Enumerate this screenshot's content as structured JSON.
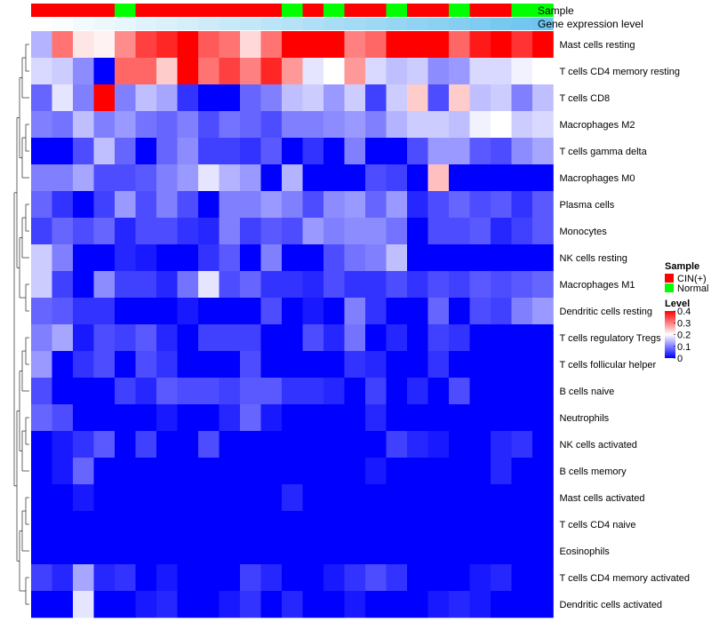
{
  "chart_data": {
    "type": "heatmap",
    "annotations": {
      "sample": {
        "name": "Sample",
        "values": [
          "CIN(+)",
          "CIN(+)",
          "CIN(+)",
          "CIN(+)",
          "Normal",
          "CIN(+)",
          "CIN(+)",
          "CIN(+)",
          "CIN(+)",
          "CIN(+)",
          "CIN(+)",
          "CIN(+)",
          "Normal",
          "CIN(+)",
          "Normal",
          "CIN(+)",
          "CIN(+)",
          "Normal",
          "CIN(+)",
          "CIN(+)",
          "Normal",
          "CIN(+)",
          "CIN(+)",
          "Normal",
          "Normal"
        ]
      },
      "expression": {
        "name": "Gene expression level",
        "values": [
          0.0,
          0.04,
          0.08,
          0.12,
          0.16,
          0.2,
          0.24,
          0.28,
          0.32,
          0.36,
          0.4,
          0.44,
          0.48,
          0.52,
          0.56,
          0.6,
          0.64,
          0.68,
          0.72,
          0.76,
          0.8,
          0.84,
          0.88,
          0.92,
          0.96
        ],
        "low_color": "#ffffff",
        "high_color": "#66c2ee"
      }
    },
    "rows": [
      "Mast cells resting",
      "T cells CD4 memory resting",
      "T cells CD8",
      "Macrophages M2",
      "T cells gamma delta",
      "Macrophages M0",
      "Plasma cells",
      "Monocytes",
      "NK cells resting",
      "Macrophages M1",
      "Dendritic cells resting",
      "T cells regulatory  Tregs",
      "T cells follicular helper",
      "B cells naive",
      "Neutrophils",
      "NK cells activated",
      "B cells memory",
      "Mast cells activated",
      "T cells CD4 naive",
      "Eosinophils",
      "T cells CD4 memory activated",
      "Dendritic cells activated"
    ],
    "values": [
      [
        0.14,
        0.31,
        0.22,
        0.21,
        0.29,
        0.35,
        0.37,
        0.42,
        0.33,
        0.31,
        0.23,
        0.31,
        0.4,
        0.4,
        0.4,
        0.3,
        0.32,
        0.4,
        0.4,
        0.4,
        0.32,
        0.38,
        0.4,
        0.36,
        0.41
      ],
      [
        0.17,
        0.16,
        0.11,
        0.0,
        0.32,
        0.32,
        0.24,
        0.4,
        0.31,
        0.35,
        0.3,
        0.37,
        0.28,
        0.18,
        0.2,
        0.28,
        0.17,
        0.15,
        0.16,
        0.11,
        0.12,
        0.17,
        0.17,
        0.19,
        0.2
      ],
      [
        0.08,
        0.18,
        0.1,
        0.42,
        0.1,
        0.15,
        0.13,
        0.04,
        0.0,
        0.0,
        0.08,
        0.1,
        0.15,
        0.16,
        0.12,
        0.16,
        0.05,
        0.16,
        0.24,
        0.06,
        0.24,
        0.15,
        0.16,
        0.1,
        0.15
      ],
      [
        0.1,
        0.09,
        0.15,
        0.1,
        0.12,
        0.09,
        0.08,
        0.1,
        0.06,
        0.09,
        0.08,
        0.06,
        0.1,
        0.1,
        0.11,
        0.12,
        0.1,
        0.14,
        0.16,
        0.16,
        0.15,
        0.19,
        0.2,
        0.16,
        0.17
      ],
      [
        0.0,
        0.0,
        0.06,
        0.15,
        0.08,
        0.0,
        0.08,
        0.11,
        0.05,
        0.05,
        0.04,
        0.07,
        0.0,
        0.04,
        0.0,
        0.1,
        0.0,
        0.0,
        0.06,
        0.12,
        0.12,
        0.07,
        0.06,
        0.11,
        0.13
      ],
      [
        0.1,
        0.1,
        0.13,
        0.06,
        0.06,
        0.07,
        0.1,
        0.12,
        0.18,
        0.14,
        0.12,
        0.0,
        0.14,
        0.0,
        0.0,
        0.0,
        0.06,
        0.05,
        0.0,
        0.25,
        0.0,
        0.0,
        0.0,
        0.0,
        0.0
      ],
      [
        0.08,
        0.04,
        0.0,
        0.05,
        0.12,
        0.06,
        0.1,
        0.06,
        0.0,
        0.1,
        0.1,
        0.12,
        0.1,
        0.06,
        0.11,
        0.12,
        0.08,
        0.12,
        0.03,
        0.06,
        0.08,
        0.06,
        0.07,
        0.04,
        0.07
      ],
      [
        0.05,
        0.08,
        0.06,
        0.08,
        0.03,
        0.06,
        0.06,
        0.04,
        0.03,
        0.1,
        0.05,
        0.07,
        0.06,
        0.12,
        0.1,
        0.11,
        0.11,
        0.09,
        0.0,
        0.06,
        0.06,
        0.07,
        0.03,
        0.05,
        0.07
      ],
      [
        0.16,
        0.1,
        0.0,
        0.0,
        0.03,
        0.02,
        0.0,
        0.0,
        0.04,
        0.07,
        0.0,
        0.1,
        0.0,
        0.0,
        0.06,
        0.09,
        0.1,
        0.15,
        0.0,
        0.0,
        0.0,
        0.0,
        0.0,
        0.0,
        0.0
      ],
      [
        0.16,
        0.05,
        0.0,
        0.11,
        0.05,
        0.05,
        0.03,
        0.09,
        0.18,
        0.06,
        0.08,
        0.04,
        0.04,
        0.03,
        0.06,
        0.04,
        0.04,
        0.06,
        0.04,
        0.06,
        0.05,
        0.07,
        0.06,
        0.07,
        0.08
      ],
      [
        0.08,
        0.07,
        0.04,
        0.04,
        0.0,
        0.0,
        0.0,
        0.02,
        0.0,
        0.0,
        0.0,
        0.06,
        0.0,
        0.02,
        0.0,
        0.1,
        0.04,
        0.0,
        0.0,
        0.08,
        0.0,
        0.06,
        0.05,
        0.1,
        0.12
      ],
      [
        0.1,
        0.13,
        0.02,
        0.06,
        0.05,
        0.07,
        0.03,
        0.0,
        0.05,
        0.05,
        0.05,
        0.0,
        0.0,
        0.06,
        0.03,
        0.09,
        0.0,
        0.03,
        0.0,
        0.05,
        0.04,
        0.0,
        0.0,
        0.0,
        0.0
      ],
      [
        0.12,
        0.0,
        0.04,
        0.06,
        0.0,
        0.06,
        0.04,
        0.0,
        0.0,
        0.0,
        0.06,
        0.0,
        0.0,
        0.0,
        0.0,
        0.04,
        0.03,
        0.0,
        0.0,
        0.04,
        0.0,
        0.0,
        0.0,
        0.0,
        0.0
      ],
      [
        0.06,
        0.0,
        0.0,
        0.0,
        0.05,
        0.03,
        0.07,
        0.06,
        0.06,
        0.05,
        0.07,
        0.07,
        0.04,
        0.04,
        0.03,
        0.0,
        0.05,
        0.0,
        0.03,
        0.0,
        0.06,
        0.0,
        0.0,
        0.0,
        0.0
      ],
      [
        0.08,
        0.06,
        0.0,
        0.0,
        0.0,
        0.0,
        0.02,
        0.0,
        0.0,
        0.03,
        0.08,
        0.02,
        0.0,
        0.0,
        0.0,
        0.0,
        0.03,
        0.0,
        0.0,
        0.0,
        0.0,
        0.0,
        0.0,
        0.0,
        0.0
      ],
      [
        0.0,
        0.02,
        0.04,
        0.07,
        0.0,
        0.05,
        0.0,
        0.0,
        0.06,
        0.0,
        0.0,
        0.0,
        0.0,
        0.0,
        0.0,
        0.0,
        0.0,
        0.05,
        0.03,
        0.02,
        0.0,
        0.0,
        0.03,
        0.04,
        0.0
      ],
      [
        0.0,
        0.02,
        0.08,
        0.0,
        0.0,
        0.0,
        0.0,
        0.0,
        0.0,
        0.0,
        0.0,
        0.0,
        0.0,
        0.0,
        0.0,
        0.0,
        0.02,
        0.0,
        0.0,
        0.0,
        0.0,
        0.0,
        0.03,
        0.0,
        0.0
      ],
      [
        0.0,
        0.0,
        0.02,
        0.0,
        0.0,
        0.0,
        0.0,
        0.0,
        0.0,
        0.0,
        0.0,
        0.0,
        0.03,
        0.0,
        0.0,
        0.0,
        0.0,
        0.0,
        0.0,
        0.0,
        0.0,
        0.0,
        0.0,
        0.0,
        0.0
      ],
      [
        0.0,
        0.0,
        0.0,
        0.0,
        0.0,
        0.0,
        0.0,
        0.0,
        0.0,
        0.0,
        0.0,
        0.0,
        0.0,
        0.0,
        0.0,
        0.0,
        0.0,
        0.0,
        0.0,
        0.0,
        0.0,
        0.0,
        0.0,
        0.0,
        0.0
      ],
      [
        0.0,
        0.0,
        0.0,
        0.0,
        0.0,
        0.0,
        0.0,
        0.0,
        0.0,
        0.0,
        0.0,
        0.0,
        0.0,
        0.0,
        0.0,
        0.0,
        0.0,
        0.0,
        0.0,
        0.0,
        0.0,
        0.0,
        0.0,
        0.0,
        0.0
      ],
      [
        0.05,
        0.03,
        0.13,
        0.03,
        0.04,
        0.0,
        0.02,
        0.0,
        0.0,
        0.0,
        0.05,
        0.03,
        0.0,
        0.0,
        0.02,
        0.04,
        0.06,
        0.04,
        0.0,
        0.0,
        0.0,
        0.02,
        0.03,
        0.0,
        0.0
      ],
      [
        0.0,
        0.0,
        0.18,
        0.0,
        0.0,
        0.02,
        0.03,
        0.0,
        0.0,
        0.02,
        0.04,
        0.0,
        0.03,
        0.0,
        0.0,
        0.02,
        0.0,
        0.0,
        0.0,
        0.02,
        0.03,
        0.02,
        0.0,
        0.0,
        0.0
      ]
    ],
    "legend": {
      "sample_title": "Sample",
      "sample_items": [
        {
          "label": "CIN(+)",
          "color": "#ff0000"
        },
        {
          "label": "Normal",
          "color": "#00ff00"
        }
      ],
      "level_title": "Level",
      "level_ticks": [
        {
          "label": "0.4",
          "value": 0.4
        },
        {
          "label": "0.3",
          "value": 0.3
        },
        {
          "label": "0.2",
          "value": 0.2
        },
        {
          "label": "0.1",
          "value": 0.1
        },
        {
          "label": "0",
          "value": 0
        }
      ],
      "placement": "right"
    },
    "color_scale": {
      "min": 0,
      "mid": 0.2,
      "max": 0.4,
      "low": "#0000ff",
      "mid_color": "#ffffff",
      "high": "#ff0000"
    },
    "row_dendrogram": true,
    "col_dendrogram": false
  }
}
